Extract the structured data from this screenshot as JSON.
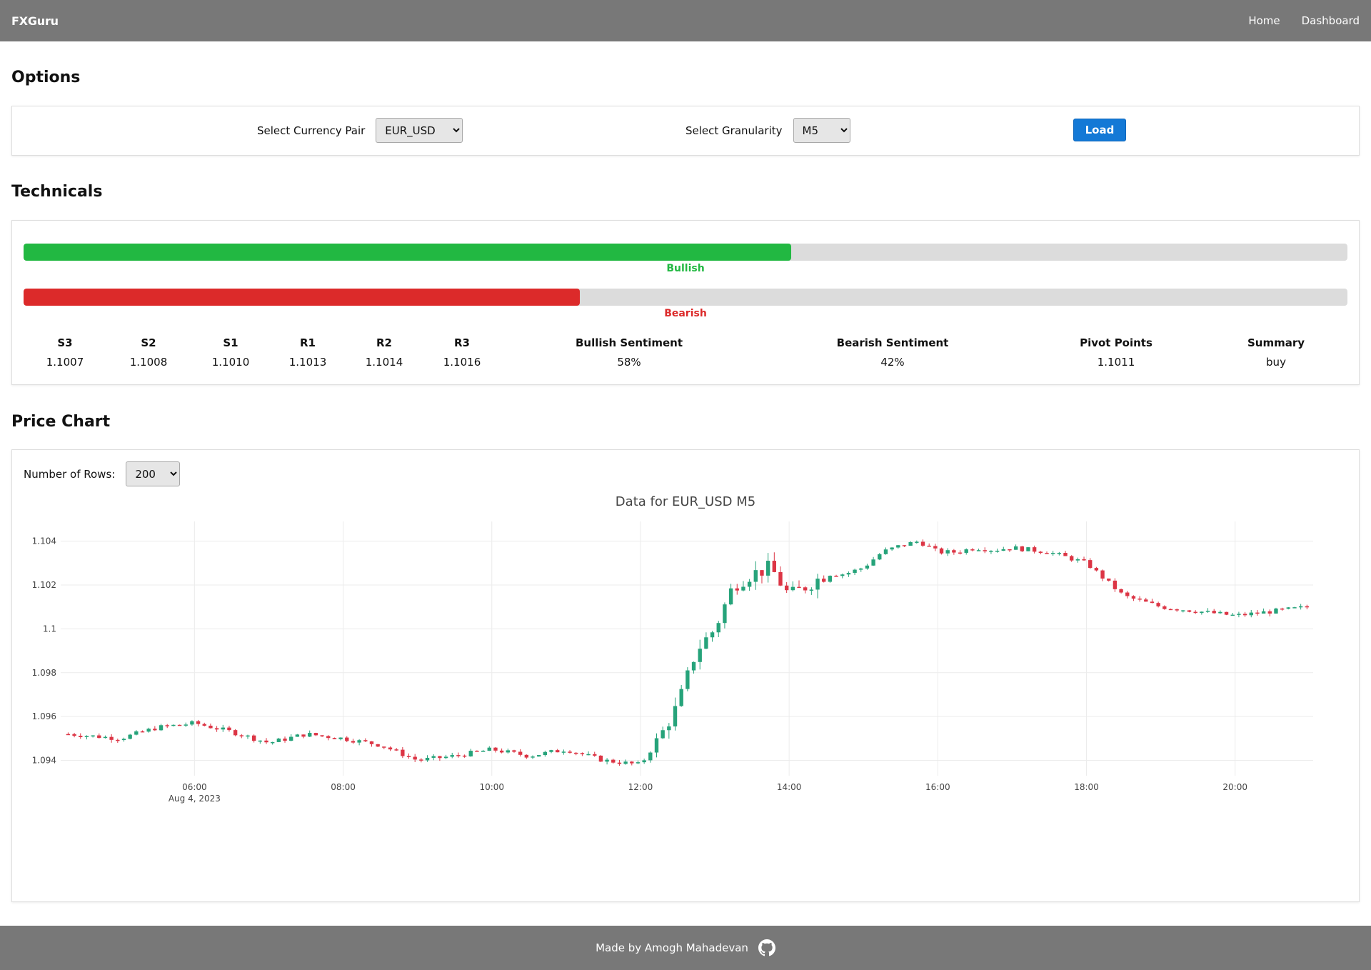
{
  "nav": {
    "brand": "FXGuru",
    "links": [
      "Home",
      "Dashboard"
    ]
  },
  "options": {
    "title": "Options",
    "currency_label": "Select Currency Pair",
    "currency_value": "EUR_USD",
    "granularity_label": "Select Granularity",
    "granularity_value": "M5",
    "load_label": "Load"
  },
  "technicals": {
    "title": "Technicals",
    "bullish_label": "Bullish",
    "bearish_label": "Bearish",
    "bullish_fraction": 0.58,
    "bearish_fraction": 0.42,
    "bullish_color": "#22b842",
    "bearish_color": "#dc2a2a",
    "stats": [
      {
        "header": "S3",
        "value": "1.1007"
      },
      {
        "header": "S2",
        "value": "1.1008"
      },
      {
        "header": "S1",
        "value": "1.1010"
      },
      {
        "header": "R1",
        "value": "1.1013"
      },
      {
        "header": "R2",
        "value": "1.1014"
      },
      {
        "header": "R3",
        "value": "1.1016"
      },
      {
        "header": "Bullish Sentiment",
        "value": "58%"
      },
      {
        "header": "Bearish Sentiment",
        "value": "42%"
      },
      {
        "header": "Pivot Points",
        "value": "1.1011"
      },
      {
        "header": "Summary",
        "value": "buy"
      }
    ]
  },
  "price_chart": {
    "title": "Price Chart",
    "rows_label": "Number of Rows:",
    "rows_value": "200"
  },
  "chart_data": {
    "type": "candlestick",
    "title": "Data for EUR_USD M5",
    "y_ticks": [
      "1.094",
      "1.096",
      "1.098",
      "1.1",
      "1.102",
      "1.104"
    ],
    "x_ticks": [
      "06:00",
      "08:00",
      "10:00",
      "12:00",
      "14:00",
      "16:00",
      "18:00",
      "20:00"
    ],
    "x_date_label": "Aug 4, 2023",
    "ylim": [
      1.0933,
      1.1049
    ],
    "xlim_hours": [
      4.2,
      21.05
    ],
    "up_color": "#26a37a",
    "down_color": "#dc3545",
    "series_anchors": {
      "time_hours": [
        4.3,
        5.0,
        5.5,
        6.0,
        6.5,
        7.0,
        7.5,
        8.0,
        8.5,
        9.0,
        9.5,
        10.0,
        10.5,
        11.0,
        11.5,
        12.0,
        12.25,
        12.5,
        12.75,
        13.0,
        13.25,
        13.5,
        13.75,
        14.0,
        14.25,
        14.5,
        14.75,
        15.0,
        15.25,
        15.5,
        15.75,
        16.0,
        16.25,
        16.5,
        16.75,
        17.0,
        17.5,
        18.0,
        18.5,
        19.0,
        19.5,
        20.0,
        20.5,
        21.0
      ],
      "close": [
        1.0952,
        1.095,
        1.0955,
        1.0957,
        1.0953,
        1.0948,
        1.0952,
        1.095,
        1.0947,
        1.094,
        1.0942,
        1.0945,
        1.0942,
        1.0945,
        1.094,
        1.0938,
        1.095,
        1.0965,
        1.099,
        1.1,
        1.102,
        1.1025,
        1.1028,
        1.1015,
        1.102,
        1.1025,
        1.1025,
        1.1028,
        1.1035,
        1.1038,
        1.104,
        1.1035,
        1.1035,
        1.1037,
        1.1036,
        1.1037,
        1.1035,
        1.103,
        1.1015,
        1.101,
        1.1008,
        1.1006,
        1.1008,
        1.101
      ]
    }
  },
  "footer": {
    "text": "Made by Amogh Mahadevan"
  }
}
